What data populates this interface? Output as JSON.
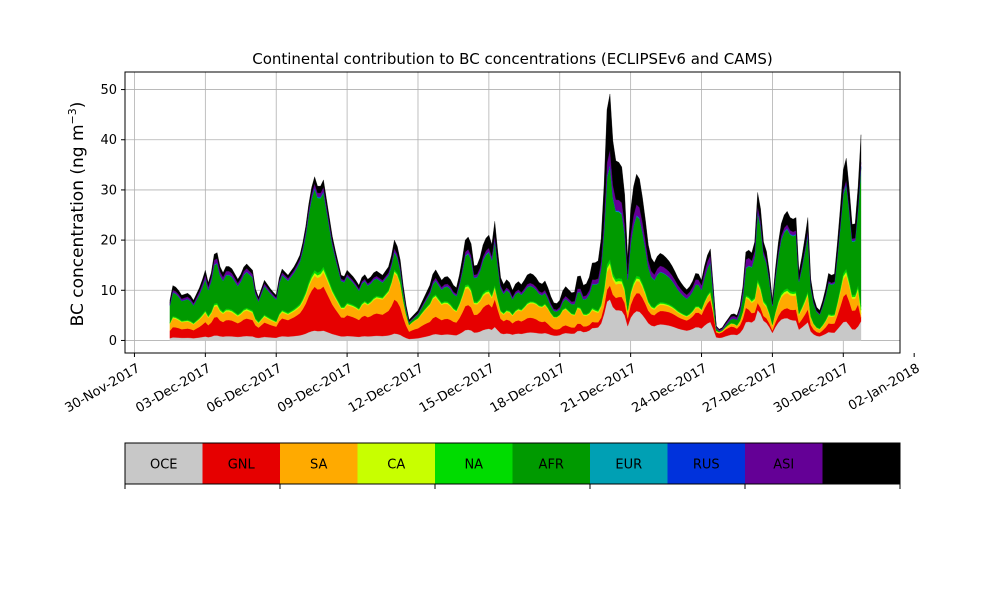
{
  "chart_data": {
    "type": "area",
    "stacked": true,
    "title": "Continental contribution to BC concentrations (ECLIPSEv6 and CAMS)",
    "ylabel_main": "BC concentration (ng m",
    "ylabel_sup": "−3",
    "ylabel_close": ")",
    "xlabel": "",
    "ylim": [
      -2.5,
      53.5
    ],
    "xlim_days": [
      -0.4,
      32.4
    ],
    "grid": true,
    "x_start": "2017-12-01T12:00",
    "x_step_hours": 3,
    "yticks": [
      0,
      10,
      20,
      30,
      40,
      50
    ],
    "xticks": [
      {
        "day": 0,
        "label": "30-Nov-2017"
      },
      {
        "day": 3,
        "label": "03-Dec-2017"
      },
      {
        "day": 6,
        "label": "06-Dec-2017"
      },
      {
        "day": 9,
        "label": "09-Dec-2017"
      },
      {
        "day": 12,
        "label": "12-Dec-2017"
      },
      {
        "day": 15,
        "label": "15-Dec-2017"
      },
      {
        "day": 18,
        "label": "18-Dec-2017"
      },
      {
        "day": 21,
        "label": "21-Dec-2017"
      },
      {
        "day": 24,
        "label": "24-Dec-2017"
      },
      {
        "day": 27,
        "label": "27-Dec-2017"
      },
      {
        "day": 30,
        "label": "30-Dec-2017"
      },
      {
        "day": 33,
        "label": "02-Jan-2018"
      }
    ],
    "series": [
      {
        "name": "OCE",
        "color": "#c8c8c8"
      },
      {
        "name": "GNL",
        "color": "#e60000"
      },
      {
        "name": "SA",
        "color": "#ffaa00"
      },
      {
        "name": "CA",
        "color": "#c8ff00"
      },
      {
        "name": "NA",
        "color": "#00dc00"
      },
      {
        "name": "AFR",
        "color": "#009a00"
      },
      {
        "name": "EUR",
        "color": "#00a0b4"
      },
      {
        "name": "RUS",
        "color": "#0032dc"
      },
      {
        "name": "ASI",
        "color": "#640096"
      },
      {
        "name": "AUS",
        "color": "#000000"
      }
    ],
    "total_keypoints": [
      [
        1.5,
        8
      ],
      [
        1.6,
        11
      ],
      [
        1.8,
        10.5
      ],
      [
        2.0,
        9
      ],
      [
        2.3,
        9.5
      ],
      [
        2.5,
        8
      ],
      [
        2.8,
        11
      ],
      [
        3.0,
        14
      ],
      [
        3.1,
        12
      ],
      [
        3.2,
        10
      ],
      [
        3.3,
        17
      ],
      [
        3.5,
        17.5
      ],
      [
        3.7,
        13
      ],
      [
        3.9,
        15
      ],
      [
        4.1,
        14.5
      ],
      [
        4.4,
        12
      ],
      [
        4.7,
        15.5
      ],
      [
        5.0,
        14
      ],
      [
        5.2,
        8
      ],
      [
        5.5,
        12
      ],
      [
        5.8,
        10
      ],
      [
        6.0,
        9
      ],
      [
        6.2,
        14.5
      ],
      [
        6.5,
        13
      ],
      [
        6.8,
        15
      ],
      [
        7.0,
        17
      ],
      [
        7.2,
        21
      ],
      [
        7.4,
        28
      ],
      [
        7.6,
        33
      ],
      [
        7.8,
        30
      ],
      [
        8.0,
        32
      ],
      [
        8.2,
        26
      ],
      [
        8.4,
        20
      ],
      [
        8.6,
        16
      ],
      [
        8.8,
        12
      ],
      [
        9.0,
        14
      ],
      [
        9.3,
        12.5
      ],
      [
        9.5,
        11
      ],
      [
        9.7,
        13.5
      ],
      [
        9.9,
        12
      ],
      [
        10.2,
        14
      ],
      [
        10.5,
        13
      ],
      [
        10.8,
        15
      ],
      [
        11.0,
        20
      ],
      [
        11.2,
        18
      ],
      [
        11.4,
        10
      ],
      [
        11.6,
        4
      ],
      [
        11.8,
        5
      ],
      [
        12.0,
        6
      ],
      [
        12.3,
        9
      ],
      [
        12.5,
        11
      ],
      [
        12.7,
        14.5
      ],
      [
        13.0,
        12
      ],
      [
        13.2,
        13
      ],
      [
        13.4,
        12
      ],
      [
        13.6,
        10
      ],
      [
        13.8,
        14
      ],
      [
        14.0,
        20
      ],
      [
        14.2,
        21
      ],
      [
        14.4,
        14
      ],
      [
        14.6,
        16
      ],
      [
        14.8,
        20
      ],
      [
        15.0,
        21
      ],
      [
        15.2,
        18
      ],
      [
        15.3,
        29.5
      ],
      [
        15.4,
        14
      ],
      [
        15.6,
        11
      ],
      [
        15.8,
        12.5
      ],
      [
        16.0,
        10
      ],
      [
        16.2,
        12
      ],
      [
        16.4,
        11
      ],
      [
        16.6,
        13
      ],
      [
        16.8,
        13.5
      ],
      [
        17.0,
        12.5
      ],
      [
        17.2,
        11
      ],
      [
        17.4,
        12
      ],
      [
        17.6,
        9
      ],
      [
        17.8,
        7
      ],
      [
        18.0,
        8
      ],
      [
        18.2,
        11
      ],
      [
        18.4,
        10
      ],
      [
        18.6,
        9
      ],
      [
        18.8,
        14
      ],
      [
        19.0,
        11
      ],
      [
        19.2,
        11.5
      ],
      [
        19.4,
        16
      ],
      [
        19.6,
        15
      ],
      [
        19.8,
        22
      ],
      [
        20.0,
        46
      ],
      [
        20.1,
        51
      ],
      [
        20.3,
        36
      ],
      [
        20.5,
        35.5
      ],
      [
        20.7,
        34
      ],
      [
        20.9,
        14
      ],
      [
        21.0,
        26
      ],
      [
        21.2,
        33.5
      ],
      [
        21.4,
        32
      ],
      [
        21.6,
        25
      ],
      [
        21.8,
        17
      ],
      [
        22.0,
        15.5
      ],
      [
        22.2,
        17.5
      ],
      [
        22.4,
        17
      ],
      [
        22.6,
        16
      ],
      [
        22.8,
        14.5
      ],
      [
        23.0,
        12.5
      ],
      [
        23.2,
        11
      ],
      [
        23.4,
        10
      ],
      [
        23.6,
        11.5
      ],
      [
        23.8,
        14
      ],
      [
        24.0,
        12
      ],
      [
        24.2,
        16.5
      ],
      [
        24.4,
        18.5
      ],
      [
        24.6,
        3
      ],
      [
        24.8,
        2
      ],
      [
        25.0,
        3.5
      ],
      [
        25.3,
        5.5
      ],
      [
        25.5,
        5
      ],
      [
        25.7,
        8
      ],
      [
        25.9,
        19
      ],
      [
        26.1,
        17
      ],
      [
        26.3,
        20.5
      ],
      [
        26.4,
        32.5
      ],
      [
        26.6,
        20
      ],
      [
        26.8,
        17
      ],
      [
        27.0,
        8
      ],
      [
        27.2,
        18
      ],
      [
        27.4,
        24
      ],
      [
        27.6,
        26
      ],
      [
        27.8,
        24
      ],
      [
        28.0,
        24.5
      ],
      [
        28.1,
        13
      ],
      [
        28.3,
        18
      ],
      [
        28.5,
        24.5
      ],
      [
        28.6,
        13
      ],
      [
        28.8,
        7
      ],
      [
        29.0,
        6
      ],
      [
        29.2,
        9
      ],
      [
        29.4,
        14
      ],
      [
        29.6,
        12
      ],
      [
        29.8,
        22
      ],
      [
        30.0,
        34
      ],
      [
        30.1,
        37.5
      ],
      [
        30.3,
        28
      ],
      [
        30.4,
        21.5
      ],
      [
        30.6,
        25
      ],
      [
        30.7,
        47.5
      ],
      [
        30.75,
        41
      ]
    ],
    "fraction_keypoints": {
      "OCE": [
        [
          0,
          0.06
        ],
        [
          12,
          0.08
        ],
        [
          24.8,
          0.3
        ],
        [
          33,
          0.03
        ]
      ],
      "GNL": [
        [
          0,
          0.18
        ],
        [
          11.8,
          0.4
        ],
        [
          12.5,
          0.25
        ],
        [
          17,
          0.3
        ],
        [
          19.9,
          0.06
        ],
        [
          24.4,
          0.35
        ],
        [
          24.8,
          0.55
        ],
        [
          25.4,
          0.35
        ],
        [
          26.4,
          0.05
        ],
        [
          30.6,
          0.2
        ],
        [
          30.75,
          0.02
        ]
      ],
      "SA": [
        [
          0,
          0.22
        ],
        [
          3,
          0.15
        ],
        [
          7.6,
          0.08
        ],
        [
          11.8,
          0.35
        ],
        [
          15.3,
          0.1
        ],
        [
          18,
          0.45
        ],
        [
          19.9,
          0.1
        ],
        [
          24.4,
          0.1
        ],
        [
          24.8,
          0.12
        ],
        [
          26.4,
          0.15
        ],
        [
          30.6,
          0.12
        ],
        [
          30.75,
          0.02
        ]
      ],
      "CA": [
        [
          0,
          0.02
        ],
        [
          33,
          0.02
        ]
      ],
      "NA": [
        [
          0,
          0.02
        ],
        [
          33,
          0.02
        ]
      ],
      "AFR": [
        [
          0,
          0.45
        ],
        [
          7.6,
          0.6
        ],
        [
          11.8,
          0.1
        ],
        [
          15.3,
          0.45
        ],
        [
          18,
          0.18
        ],
        [
          20.1,
          0.5
        ],
        [
          24.4,
          0.45
        ],
        [
          24.8,
          0.05
        ],
        [
          26.4,
          0.55
        ],
        [
          30.6,
          0.55
        ],
        [
          30.75,
          0.75
        ]
      ],
      "EUR": [
        [
          0,
          0.005
        ],
        [
          33,
          0.005
        ]
      ],
      "RUS": [
        [
          0,
          0.005
        ],
        [
          33,
          0.005
        ]
      ],
      "ASI": [
        [
          0,
          0.03
        ],
        [
          3.3,
          0.06
        ],
        [
          7.6,
          0.03
        ],
        [
          15,
          0.04
        ],
        [
          25.9,
          0.12
        ],
        [
          26.4,
          0.04
        ],
        [
          33,
          0.01
        ]
      ],
      "AUS": [
        [
          0,
          0.1
        ],
        [
          7.6,
          0.05
        ],
        [
          15.3,
          0.15
        ],
        [
          20.1,
          0.3
        ],
        [
          24.4,
          0.1
        ],
        [
          24.8,
          0.1
        ],
        [
          30.75,
          0.15
        ]
      ]
    }
  }
}
